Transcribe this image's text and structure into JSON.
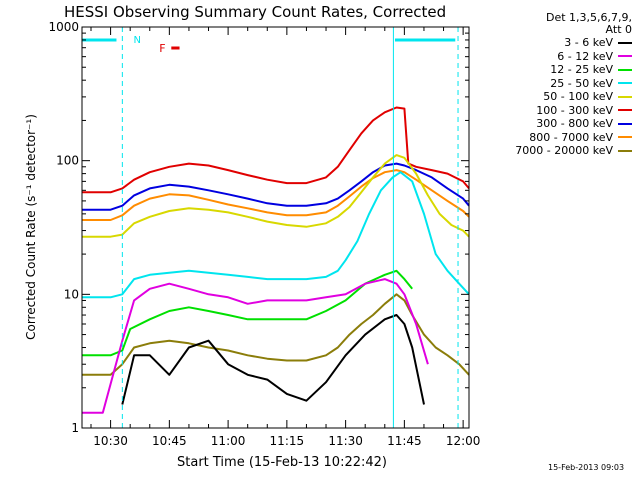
{
  "chart_data": {
    "type": "line",
    "title": "HESSI Observing Summary Count Rates, Corrected",
    "xlabel": "Start Time (15-Feb-13 10:22:42)",
    "ylabel": "Corrected Count Rate (s⁻¹ detector⁻¹)",
    "y_scale": "log",
    "ylim": [
      1,
      1000
    ],
    "xlim_minutes": [
      22.7,
      121.5
    ],
    "x_tick_labels": [
      "10:30",
      "10:45",
      "11:00",
      "11:15",
      "11:30",
      "11:45",
      "12:00"
    ],
    "x_tick_minutes": [
      30,
      45,
      60,
      75,
      90,
      105,
      120
    ],
    "y_tick_labels": [
      "1",
      "10",
      "100",
      "1000"
    ],
    "y_tick_values": [
      1,
      10,
      100,
      1000
    ],
    "vertical_markers": [
      {
        "color": "#00e5ee",
        "style": "dashed",
        "x": 33.0
      },
      {
        "color": "#00e5ee",
        "style": "solid",
        "x": 102.2
      },
      {
        "color": "#00e5ee",
        "style": "dashed",
        "x": 118.7
      }
    ],
    "night_bar": {
      "color": "#00e5ee",
      "segments": [
        [
          22.7,
          31.5
        ],
        [
          102.6,
          118.0
        ]
      ],
      "label": "N"
    },
    "flare_bar": {
      "color": "#e00000",
      "label": "F",
      "x": [
        45.5,
        47.6
      ]
    },
    "series": [
      {
        "name": "3 - 6 keV",
        "color": "#000000",
        "x": [
          33,
          36,
          40,
          45,
          50,
          55,
          60,
          65,
          70,
          75,
          80,
          85,
          90,
          95,
          100,
          103,
          105,
          107,
          110
        ],
        "y": [
          1.5,
          3.5,
          3.5,
          2.5,
          4,
          4.5,
          3,
          2.5,
          2.3,
          1.8,
          1.6,
          2.2,
          3.5,
          5,
          6.5,
          7,
          6,
          4,
          1.5
        ]
      },
      {
        "name": "6 - 12 keV",
        "color": "#e000e0",
        "x": [
          22.7,
          28,
          33,
          36,
          40,
          45,
          50,
          55,
          60,
          65,
          70,
          75,
          80,
          85,
          90,
          95,
          100,
          103,
          105,
          108,
          111
        ],
        "y": [
          1.3,
          1.3,
          4.5,
          9,
          11,
          12,
          11,
          10,
          9.5,
          8.5,
          9,
          9,
          9,
          9.5,
          10,
          12,
          13,
          12,
          10,
          6,
          3
        ]
      },
      {
        "name": "12 - 25 keV",
        "color": "#00e000",
        "x": [
          22.7,
          30,
          33,
          35,
          40,
          45,
          50,
          55,
          60,
          65,
          70,
          75,
          80,
          85,
          90,
          95,
          100,
          103,
          105,
          107
        ],
        "y": [
          3.5,
          3.5,
          3.8,
          5.5,
          6.5,
          7.5,
          8,
          7.5,
          7,
          6.5,
          6.5,
          6.5,
          6.5,
          7.5,
          9,
          12,
          14,
          15,
          13,
          11
        ]
      },
      {
        "name": "25 - 50 keV",
        "color": "#00e5ee",
        "x": [
          22.7,
          30,
          33,
          36,
          40,
          45,
          50,
          55,
          60,
          65,
          70,
          75,
          80,
          85,
          88,
          90,
          93,
          96,
          99,
          102,
          104,
          107,
          110,
          113,
          116,
          119,
          121.5
        ],
        "y": [
          9.5,
          9.5,
          10,
          13,
          14,
          14.5,
          15,
          14.5,
          14,
          13.5,
          13,
          13,
          13,
          13.5,
          15,
          18,
          25,
          40,
          60,
          75,
          82,
          70,
          40,
          20,
          15,
          12,
          10
        ]
      },
      {
        "name": "50 - 100 keV",
        "color": "#d8d800",
        "x": [
          22.7,
          30,
          33,
          36,
          40,
          45,
          50,
          55,
          60,
          65,
          70,
          75,
          80,
          85,
          88,
          91,
          94,
          97,
          100,
          103,
          105,
          108,
          111,
          114,
          117,
          120,
          121.5
        ],
        "y": [
          27,
          27,
          28,
          34,
          38,
          42,
          44,
          43,
          41,
          38,
          35,
          33,
          32,
          34,
          38,
          45,
          58,
          75,
          95,
          110,
          105,
          80,
          55,
          40,
          33,
          30,
          27
        ]
      },
      {
        "name": "100 - 300 keV",
        "color": "#e00000",
        "x": [
          22.7,
          30,
          33,
          36,
          40,
          45,
          50,
          55,
          60,
          65,
          70,
          75,
          80,
          85,
          88,
          91,
          94,
          97,
          100,
          103,
          105,
          106,
          108,
          112,
          116,
          120,
          121.5
        ],
        "y": [
          58,
          58,
          62,
          72,
          82,
          90,
          95,
          92,
          85,
          78,
          72,
          68,
          68,
          75,
          90,
          120,
          160,
          200,
          230,
          250,
          245,
          95,
          90,
          85,
          80,
          70,
          62
        ]
      },
      {
        "name": "300 - 800 keV",
        "color": "#0000e0",
        "x": [
          22.7,
          30,
          33,
          36,
          40,
          45,
          50,
          55,
          60,
          65,
          70,
          75,
          80,
          85,
          88,
          91,
          94,
          97,
          100,
          103,
          105,
          108,
          112,
          116,
          120,
          121.5
        ],
        "y": [
          43,
          43,
          46,
          55,
          62,
          66,
          64,
          60,
          56,
          52,
          48,
          46,
          46,
          48,
          52,
          60,
          70,
          82,
          92,
          95,
          92,
          85,
          75,
          62,
          52,
          46
        ]
      },
      {
        "name": "800 - 7000 keV",
        "color": "#ff8c00",
        "x": [
          22.7,
          30,
          33,
          36,
          40,
          45,
          50,
          55,
          60,
          65,
          70,
          75,
          80,
          85,
          88,
          91,
          94,
          97,
          100,
          103,
          105,
          108,
          112,
          116,
          120,
          121.5
        ],
        "y": [
          36,
          36,
          39,
          46,
          52,
          56,
          55,
          51,
          47,
          44,
          41,
          39,
          39,
          41,
          46,
          54,
          64,
          74,
          82,
          85,
          82,
          72,
          60,
          50,
          42,
          38
        ]
      },
      {
        "name": "7000 - 20000 keV",
        "color": "#8b7d0a",
        "x": [
          22.7,
          30,
          33,
          36,
          40,
          45,
          50,
          55,
          60,
          65,
          70,
          75,
          80,
          85,
          88,
          91,
          94,
          97,
          100,
          103,
          105,
          107,
          110,
          113,
          116,
          119,
          121.5
        ],
        "y": [
          2.5,
          2.5,
          3,
          4,
          4.3,
          4.5,
          4.3,
          4,
          3.8,
          3.5,
          3.3,
          3.2,
          3.2,
          3.5,
          4,
          5,
          6,
          7,
          8.5,
          10,
          9,
          7,
          5,
          4,
          3.5,
          3,
          2.5
        ]
      }
    ]
  },
  "legend": {
    "header_line1": "Det 1,3,5,6,7,9,",
    "header_line2": "Att 0"
  },
  "footer_stamp": "15-Feb-2013 09:03"
}
